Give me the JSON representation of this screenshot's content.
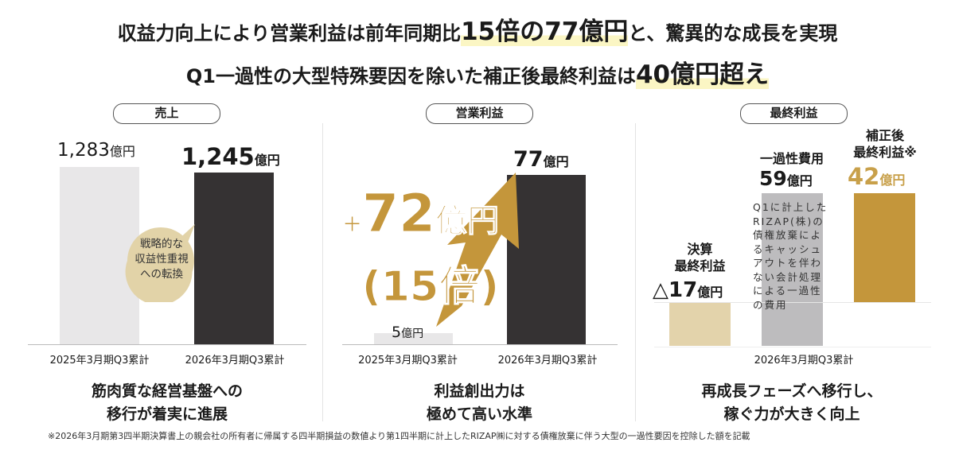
{
  "headline": {
    "line1_pre": "収益力向上により営業利益は前年同期比",
    "line1_highlight": "15倍の77億円",
    "line1_post": "と、驚異的な成長を実現",
    "line2_pre": "Q1一過性の大型特殊要因を除いた補正後最終利益は",
    "line2_highlight": "40億円超え"
  },
  "colors": {
    "gold": "#c4963b",
    "dark": "#353233",
    "light_gray": "#e8e7e8",
    "beige": "#e3d3ab",
    "mid_gray": "#bdbcbe",
    "highlight": "#fbf6c4"
  },
  "chart_data": [
    {
      "type": "bar",
      "title": "売上",
      "categories": [
        "2025年3月期Q3累計",
        "2026年3月期Q3累計"
      ],
      "values": [
        1283,
        1245
      ],
      "data_labels": [
        "1,283",
        "1,245"
      ],
      "unit": "億円",
      "bubble": [
        "戦略的な",
        "収益性重視",
        "への転換"
      ],
      "caption": [
        "筋肉質な経営基盤への",
        "移行が着実に進展"
      ]
    },
    {
      "type": "bar",
      "title": "営業利益",
      "categories": [
        "2025年3月期Q3累計",
        "2026年3月期Q3累計"
      ],
      "values": [
        5,
        77
      ],
      "data_labels": [
        "5",
        "77"
      ],
      "unit": "億円",
      "increase": {
        "plus": "+",
        "value": "72",
        "unit": "億円",
        "ratio": "(15倍)"
      },
      "caption": [
        "利益創出力は",
        "極めて高い水準"
      ]
    },
    {
      "type": "bar",
      "title": "最終利益",
      "categories": [
        "2026年3月期Q3累計"
      ],
      "series": [
        {
          "name": "決算最終利益",
          "value": -17,
          "label_lines": [
            "決算",
            "最終利益"
          ],
          "data_label": "△17"
        },
        {
          "name": "一過性費用",
          "value": 59,
          "label_lines": [
            "一過性費用"
          ],
          "data_label": "59"
        },
        {
          "name": "補正後最終利益",
          "value": 42,
          "label_lines": [
            "補正後",
            "最終利益※"
          ],
          "data_label": "42"
        }
      ],
      "unit": "億円",
      "note": "Q1に計上したRIZAP(株)の債権放棄によるキャッシュアウトを伴わない会計処理による一過性の費用",
      "caption": [
        "再成長フェーズへ移行し、",
        "稼ぐ力が大きく向上"
      ]
    }
  ],
  "footnote": "※2026年3月期第3四半期決算書上の親会社の所有者に帰属する四半期損益の数値より第1四半期に計上したRIZAP㈱に対する債権放棄に伴う大型の一過性要因を控除した額を記載"
}
